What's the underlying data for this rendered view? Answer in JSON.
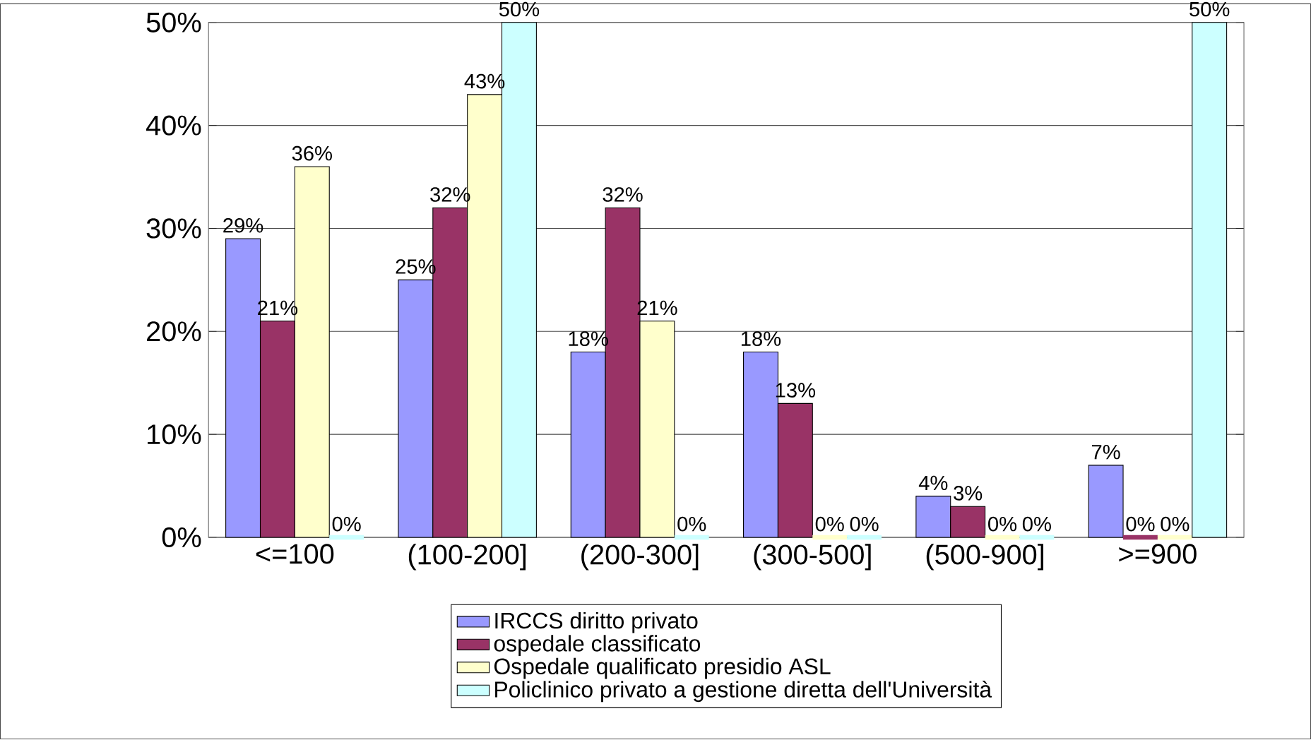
{
  "chart_data": {
    "type": "bar",
    "categories": [
      "<=100",
      "(100-200]",
      "(200-300]",
      "(300-500]",
      "(500-900]",
      ">=900"
    ],
    "series": [
      {
        "name": "IRCCS diritto privato",
        "color": "#9999ff",
        "values": [
          29,
          25,
          18,
          18,
          4,
          7
        ],
        "value_labels": [
          "29%",
          "25%",
          "18%",
          "18%",
          "4%",
          "7%"
        ]
      },
      {
        "name": "ospedale classificato",
        "color": "#993366",
        "values": [
          21,
          32,
          32,
          13,
          3,
          0
        ],
        "value_labels": [
          "21%",
          "32%",
          "32%",
          "13%",
          "3%",
          "0%"
        ]
      },
      {
        "name": "Ospedale qualificato presidio ASL",
        "color": "#ffffcc",
        "values": [
          36,
          43,
          21,
          0,
          0,
          0
        ],
        "value_labels": [
          "36%",
          "43%",
          "21%",
          "0%",
          "0%",
          "0%"
        ]
      },
      {
        "name": "Policlinico privato a gestione diretta dell'Università",
        "color": "#ccffff",
        "values": [
          0,
          50,
          0,
          0,
          0,
          50
        ],
        "value_labels": [
          "0%",
          "50%",
          "0%",
          "0%",
          "0%",
          "50%"
        ]
      }
    ],
    "ylim": [
      0,
      50
    ],
    "yticks": [
      {
        "value": 0,
        "label": "0%"
      },
      {
        "value": 10,
        "label": "10%"
      },
      {
        "value": 20,
        "label": "20%"
      },
      {
        "value": 30,
        "label": "30%"
      },
      {
        "value": 40,
        "label": "40%"
      },
      {
        "value": 50,
        "label": "50%"
      }
    ],
    "grid": "y",
    "legend": "bottom"
  }
}
